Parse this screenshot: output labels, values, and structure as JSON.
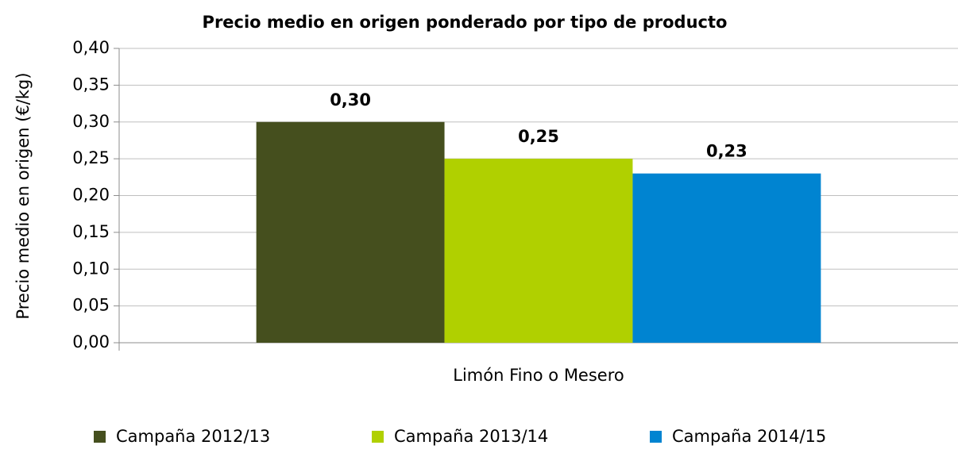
{
  "chart_data": {
    "type": "bar",
    "title": "Precio medio en origen ponderado por tipo de producto",
    "y_label": "Precio medio en origen (€/kg)",
    "categories": [
      "Limón Fino o Mesero"
    ],
    "series": [
      {
        "name": "Campaña 2012/13",
        "color": "#454f1e",
        "values": [
          0.3
        ],
        "value_labels": [
          "0,30"
        ]
      },
      {
        "name": "Campaña 2013/14",
        "color": "#b0d000",
        "values": [
          0.25
        ],
        "value_labels": [
          "0,25"
        ]
      },
      {
        "name": "Campaña 2014/15",
        "color": "#0084d1",
        "values": [
          0.23
        ],
        "value_labels": [
          "0,23"
        ]
      }
    ],
    "ylim": [
      0,
      0.4
    ],
    "yticks": [
      {
        "value": 0,
        "label": "0,00"
      },
      {
        "value": 0.05,
        "label": "0,05"
      },
      {
        "value": 0.1,
        "label": "0,10"
      },
      {
        "value": 0.15,
        "label": "0,15"
      },
      {
        "value": 0.2,
        "label": "0,20"
      },
      {
        "value": 0.25,
        "label": "0,25"
      },
      {
        "value": 0.3,
        "label": "0,30"
      },
      {
        "value": 0.35,
        "label": "0,35"
      },
      {
        "value": 0.4,
        "label": "0,40"
      }
    ],
    "grid": true,
    "legend": "bottom"
  }
}
